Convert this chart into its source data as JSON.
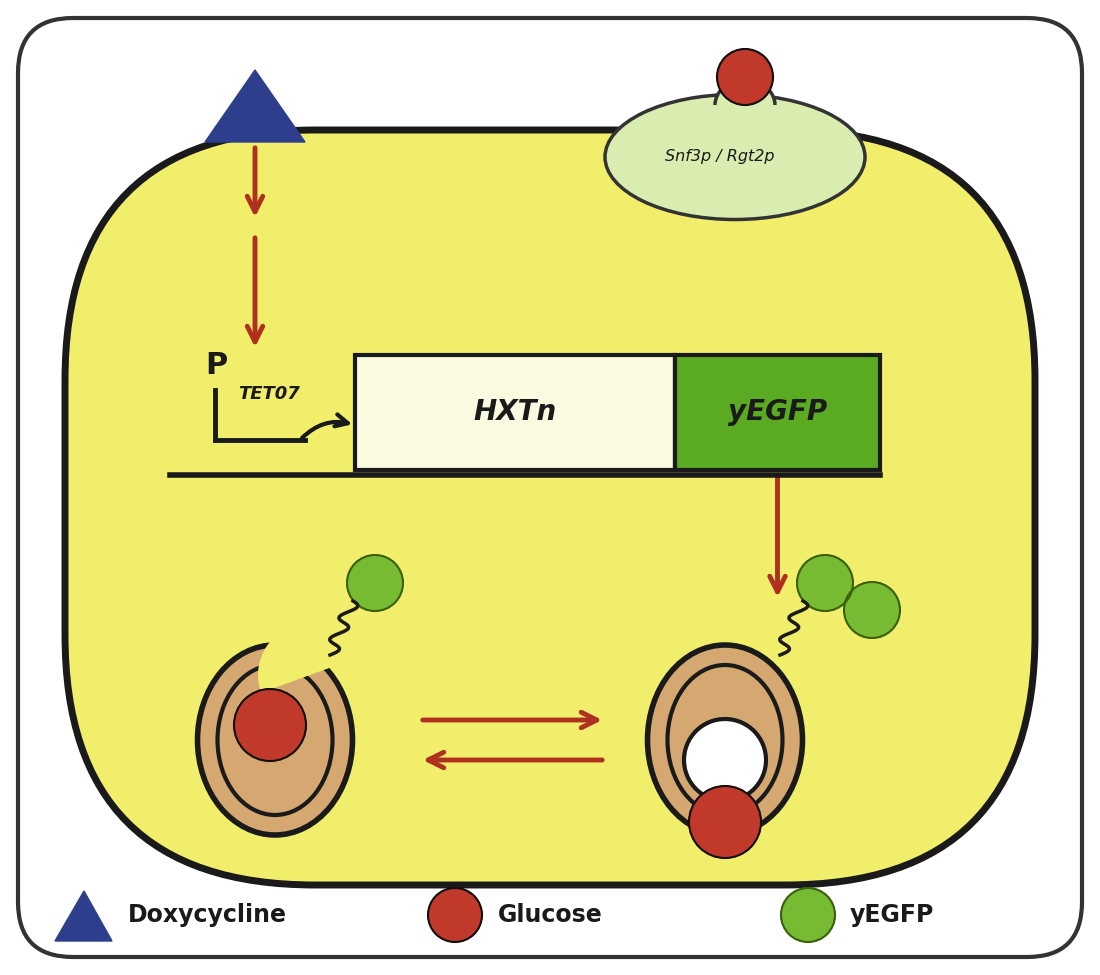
{
  "bg_color": "#ffffff",
  "cell_color": "#f0ee6a",
  "cell_border": "#1a1a1a",
  "outer_border": "#333333",
  "arrow_color": "#b03020",
  "doxy_color": "#2c3e8c",
  "glucose_color": "#c0392b",
  "yegfp_dot_color": "#77bb33",
  "snf3_bg": "#daedb0",
  "snf3_border": "#333333",
  "hxtn_box_color": "#fafae0",
  "yegfp_box_color": "#5aaa22",
  "transporter_color": "#d4a870",
  "text_color": "#1a1a1a",
  "snf3_label": "Snf3p / Rgt2p",
  "hxtn_label": "HXTn",
  "yegfp_box_label": "yEGFP",
  "promoter_P": "P",
  "promoter_sub": "TET07",
  "legend_doxy": "Doxycycline",
  "legend_glucose": "Glucose",
  "legend_yegfp": "yEGFP"
}
